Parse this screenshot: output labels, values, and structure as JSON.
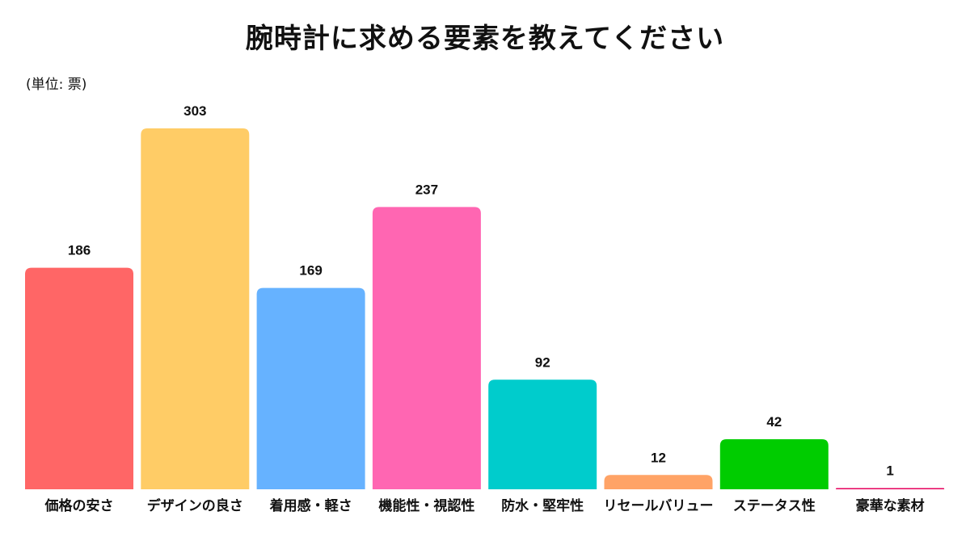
{
  "chart_data": {
    "type": "bar",
    "title": "腕時計に求める要素を教えてください",
    "unit_label": "(単位: 票)",
    "categories": [
      "価格の安さ",
      "デザインの良さ",
      "着用感・軽さ",
      "機能性・視認性",
      "防水・堅牢性",
      "リセールバリュー",
      "ステータス性",
      "豪華な素材"
    ],
    "values": [
      186,
      303,
      169,
      237,
      92,
      12,
      42,
      1
    ],
    "colors": [
      "#ff6666",
      "#ffcc66",
      "#66b2ff",
      "#ff66b2",
      "#00cccc",
      "#ffa366",
      "#00cc00",
      "#e6005c"
    ],
    "xlabel": "",
    "ylabel": "",
    "ylim": [
      0,
      303
    ],
    "grid": false,
    "legend": "none"
  }
}
